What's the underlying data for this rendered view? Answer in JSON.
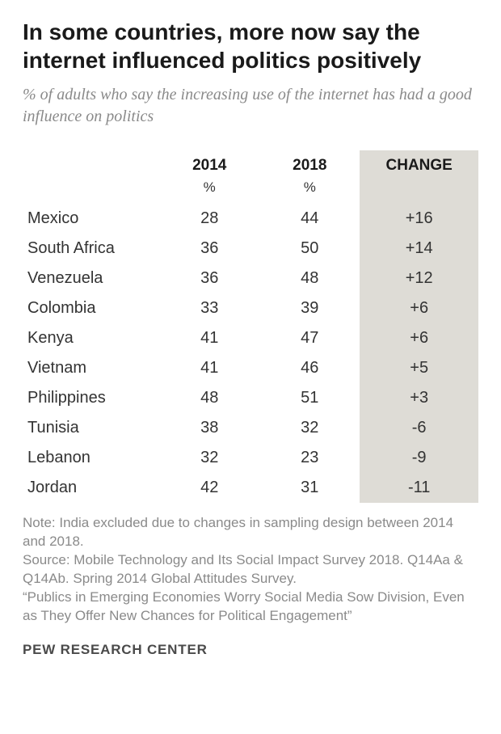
{
  "title": "In some countries, more now say the internet influenced politics positively",
  "subtitle": "% of adults who say the increasing use of the internet has had a good influence on politics",
  "columns": {
    "year1": "2014",
    "year2": "2018",
    "change": "CHANGE",
    "pct": "%"
  },
  "rows": [
    {
      "country": "Mexico",
      "y2014": "28",
      "y2018": "44",
      "change": "+16"
    },
    {
      "country": "South Africa",
      "y2014": "36",
      "y2018": "50",
      "change": "+14"
    },
    {
      "country": "Venezuela",
      "y2014": "36",
      "y2018": "48",
      "change": "+12"
    },
    {
      "country": "Colombia",
      "y2014": "33",
      "y2018": "39",
      "change": "+6"
    },
    {
      "country": "Kenya",
      "y2014": "41",
      "y2018": "47",
      "change": "+6"
    },
    {
      "country": "Vietnam",
      "y2014": "41",
      "y2018": "46",
      "change": "+5"
    },
    {
      "country": "Philippines",
      "y2014": "48",
      "y2018": "51",
      "change": "+3"
    },
    {
      "country": "Tunisia",
      "y2014": "38",
      "y2018": "32",
      "change": "-6"
    },
    {
      "country": "Lebanon",
      "y2014": "32",
      "y2018": "23",
      "change": "-9"
    },
    {
      "country": "Jordan",
      "y2014": "42",
      "y2018": "31",
      "change": "-11"
    }
  ],
  "note": "Note: India excluded due to changes in sampling design between 2014 and 2018.\nSource: Mobile Technology and Its Social Impact Survey 2018. Q14Aa & Q14Ab. Spring 2014 Global Attitudes Survey.\n“Publics in Emerging Economies Worry Social Media Sow Division, Even as They Offer New Chances for Political Engagement”",
  "org": "PEW RESEARCH CENTER",
  "style": {
    "change_bg": "#dedcd6",
    "title_color": "#1a1a1a",
    "subtitle_color": "#8a8a8a",
    "text_color": "#333333",
    "note_color": "#8a8a8a",
    "background": "#ffffff",
    "title_fontsize": 28,
    "subtitle_fontsize": 20,
    "body_fontsize": 20,
    "col_widths_pct": [
      30,
      22,
      22,
      26
    ]
  }
}
